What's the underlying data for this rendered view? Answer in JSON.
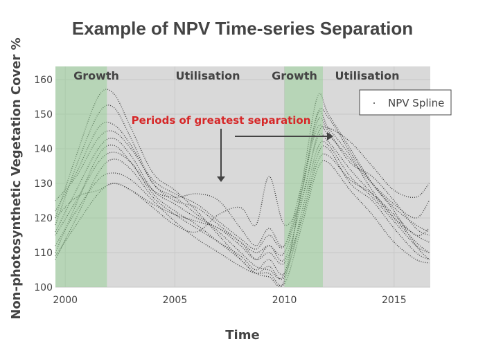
{
  "chart_data": {
    "type": "line",
    "title": "Example of NPV Time-series Separation",
    "xlabel": "Time",
    "ylabel": "Non-photosynthetic Vegetation Cover %",
    "xlim": [
      1999.55,
      2016.65
    ],
    "ylim": [
      100,
      163.8
    ],
    "x_ticks": [
      2000,
      2005,
      2010,
      2015
    ],
    "x_tick_labels": [
      "2000",
      "2005",
      "2010",
      "2015"
    ],
    "y_ticks": [
      100,
      110,
      120,
      130,
      140,
      150,
      160
    ],
    "y_tick_labels": [
      "100",
      "110",
      "120",
      "130",
      "140",
      "150",
      "160"
    ],
    "grid": true,
    "legend": {
      "placement": "top-right",
      "entries": [
        "NPV Spline"
      ]
    },
    "phases": [
      {
        "label": "Growth",
        "start": 1999.55,
        "end": 2001.9,
        "color": "#8fd18f"
      },
      {
        "label": "Utilisation",
        "start": 2001.9,
        "end": 2010.0,
        "color": null
      },
      {
        "label": "Growth",
        "start": 2010.0,
        "end": 2011.75,
        "color": "#8fd18f"
      },
      {
        "label": "Utilisation",
        "start": 2011.75,
        "end": 2016.65,
        "color": null
      }
    ],
    "annotation": "Periods of greatest separation",
    "x": [
      1999.55,
      2000.5,
      2001.5,
      2002.2,
      2003,
      2004,
      2005,
      2006,
      2007,
      2008,
      2008.7,
      2009.3,
      2010,
      2010.8,
      2011.5,
      2012,
      2013,
      2014,
      2015,
      2016,
      2016.6
    ],
    "series": [
      {
        "name": "NPV Spline",
        "values": [
          120,
          138,
          155,
          156,
          146,
          133,
          128,
          122,
          115,
          108,
          104,
          103,
          102,
          130,
          155,
          150,
          140,
          130,
          122,
          112,
          108
        ]
      },
      {
        "name": "NPV Spline",
        "values": [
          118,
          135,
          150,
          152,
          143,
          130,
          126,
          121,
          116,
          110,
          106,
          105,
          104,
          128,
          150,
          146,
          138,
          128,
          120,
          113,
          110
        ]
      },
      {
        "name": "NPV Spline",
        "values": [
          122,
          133,
          146,
          147,
          141,
          130,
          125,
          123,
          118,
          113,
          110,
          112,
          110,
          128,
          148,
          145,
          136,
          132,
          125,
          117,
          115
        ]
      },
      {
        "name": "NPV Spline",
        "values": [
          125,
          132,
          143,
          145,
          140,
          131,
          127,
          124,
          119,
          114,
          111,
          115,
          112,
          130,
          146,
          144,
          137,
          130,
          124,
          120,
          125
        ]
      },
      {
        "name": "NPV Spline",
        "values": [
          116,
          128,
          140,
          143,
          138,
          128,
          124,
          120,
          117,
          112,
          108,
          112,
          108,
          125,
          143,
          142,
          134,
          127,
          120,
          115,
          113
        ]
      },
      {
        "name": "NPV Spline",
        "values": [
          110,
          124,
          138,
          141,
          136,
          127,
          122,
          118,
          113,
          108,
          104,
          106,
          103,
          122,
          140,
          141,
          132,
          126,
          119,
          112,
          110
        ]
      },
      {
        "name": "NPV Spline",
        "values": [
          108,
          120,
          133,
          137,
          134,
          126,
          121,
          117,
          113,
          109,
          105,
          108,
          104,
          120,
          138,
          140,
          130,
          125,
          117,
          110,
          108
        ]
      },
      {
        "name": "NPV Spline",
        "values": [
          112,
          122,
          131,
          133,
          131,
          125,
          119,
          114,
          110,
          106,
          104,
          104,
          101,
          118,
          134,
          136,
          128,
          121,
          113,
          108,
          107
        ]
      },
      {
        "name": "NPV Spline",
        "values": [
          120,
          126,
          128,
          130,
          128,
          123,
          118,
          116,
          121,
          123,
          118,
          132,
          118,
          126,
          144,
          146,
          142,
          135,
          128,
          126,
          130
        ]
      },
      {
        "name": "NPV Spline",
        "values": [
          115,
          125,
          136,
          139,
          136,
          128,
          126,
          127,
          125,
          117,
          112,
          117,
          112,
          128,
          150,
          149,
          139,
          130,
          123,
          118,
          116
        ]
      },
      {
        "name": "NPV Spline",
        "values": [
          109,
          118,
          127,
          130,
          128,
          124,
          121,
          119,
          117,
          113,
          108,
          110,
          107,
          120,
          136,
          138,
          131,
          127,
          121,
          115,
          117
        ]
      }
    ],
    "colors": {
      "line": "#444444",
      "background": "#d9d9d9",
      "grid": "#c8c8c8",
      "annotation": "#d62728"
    }
  }
}
